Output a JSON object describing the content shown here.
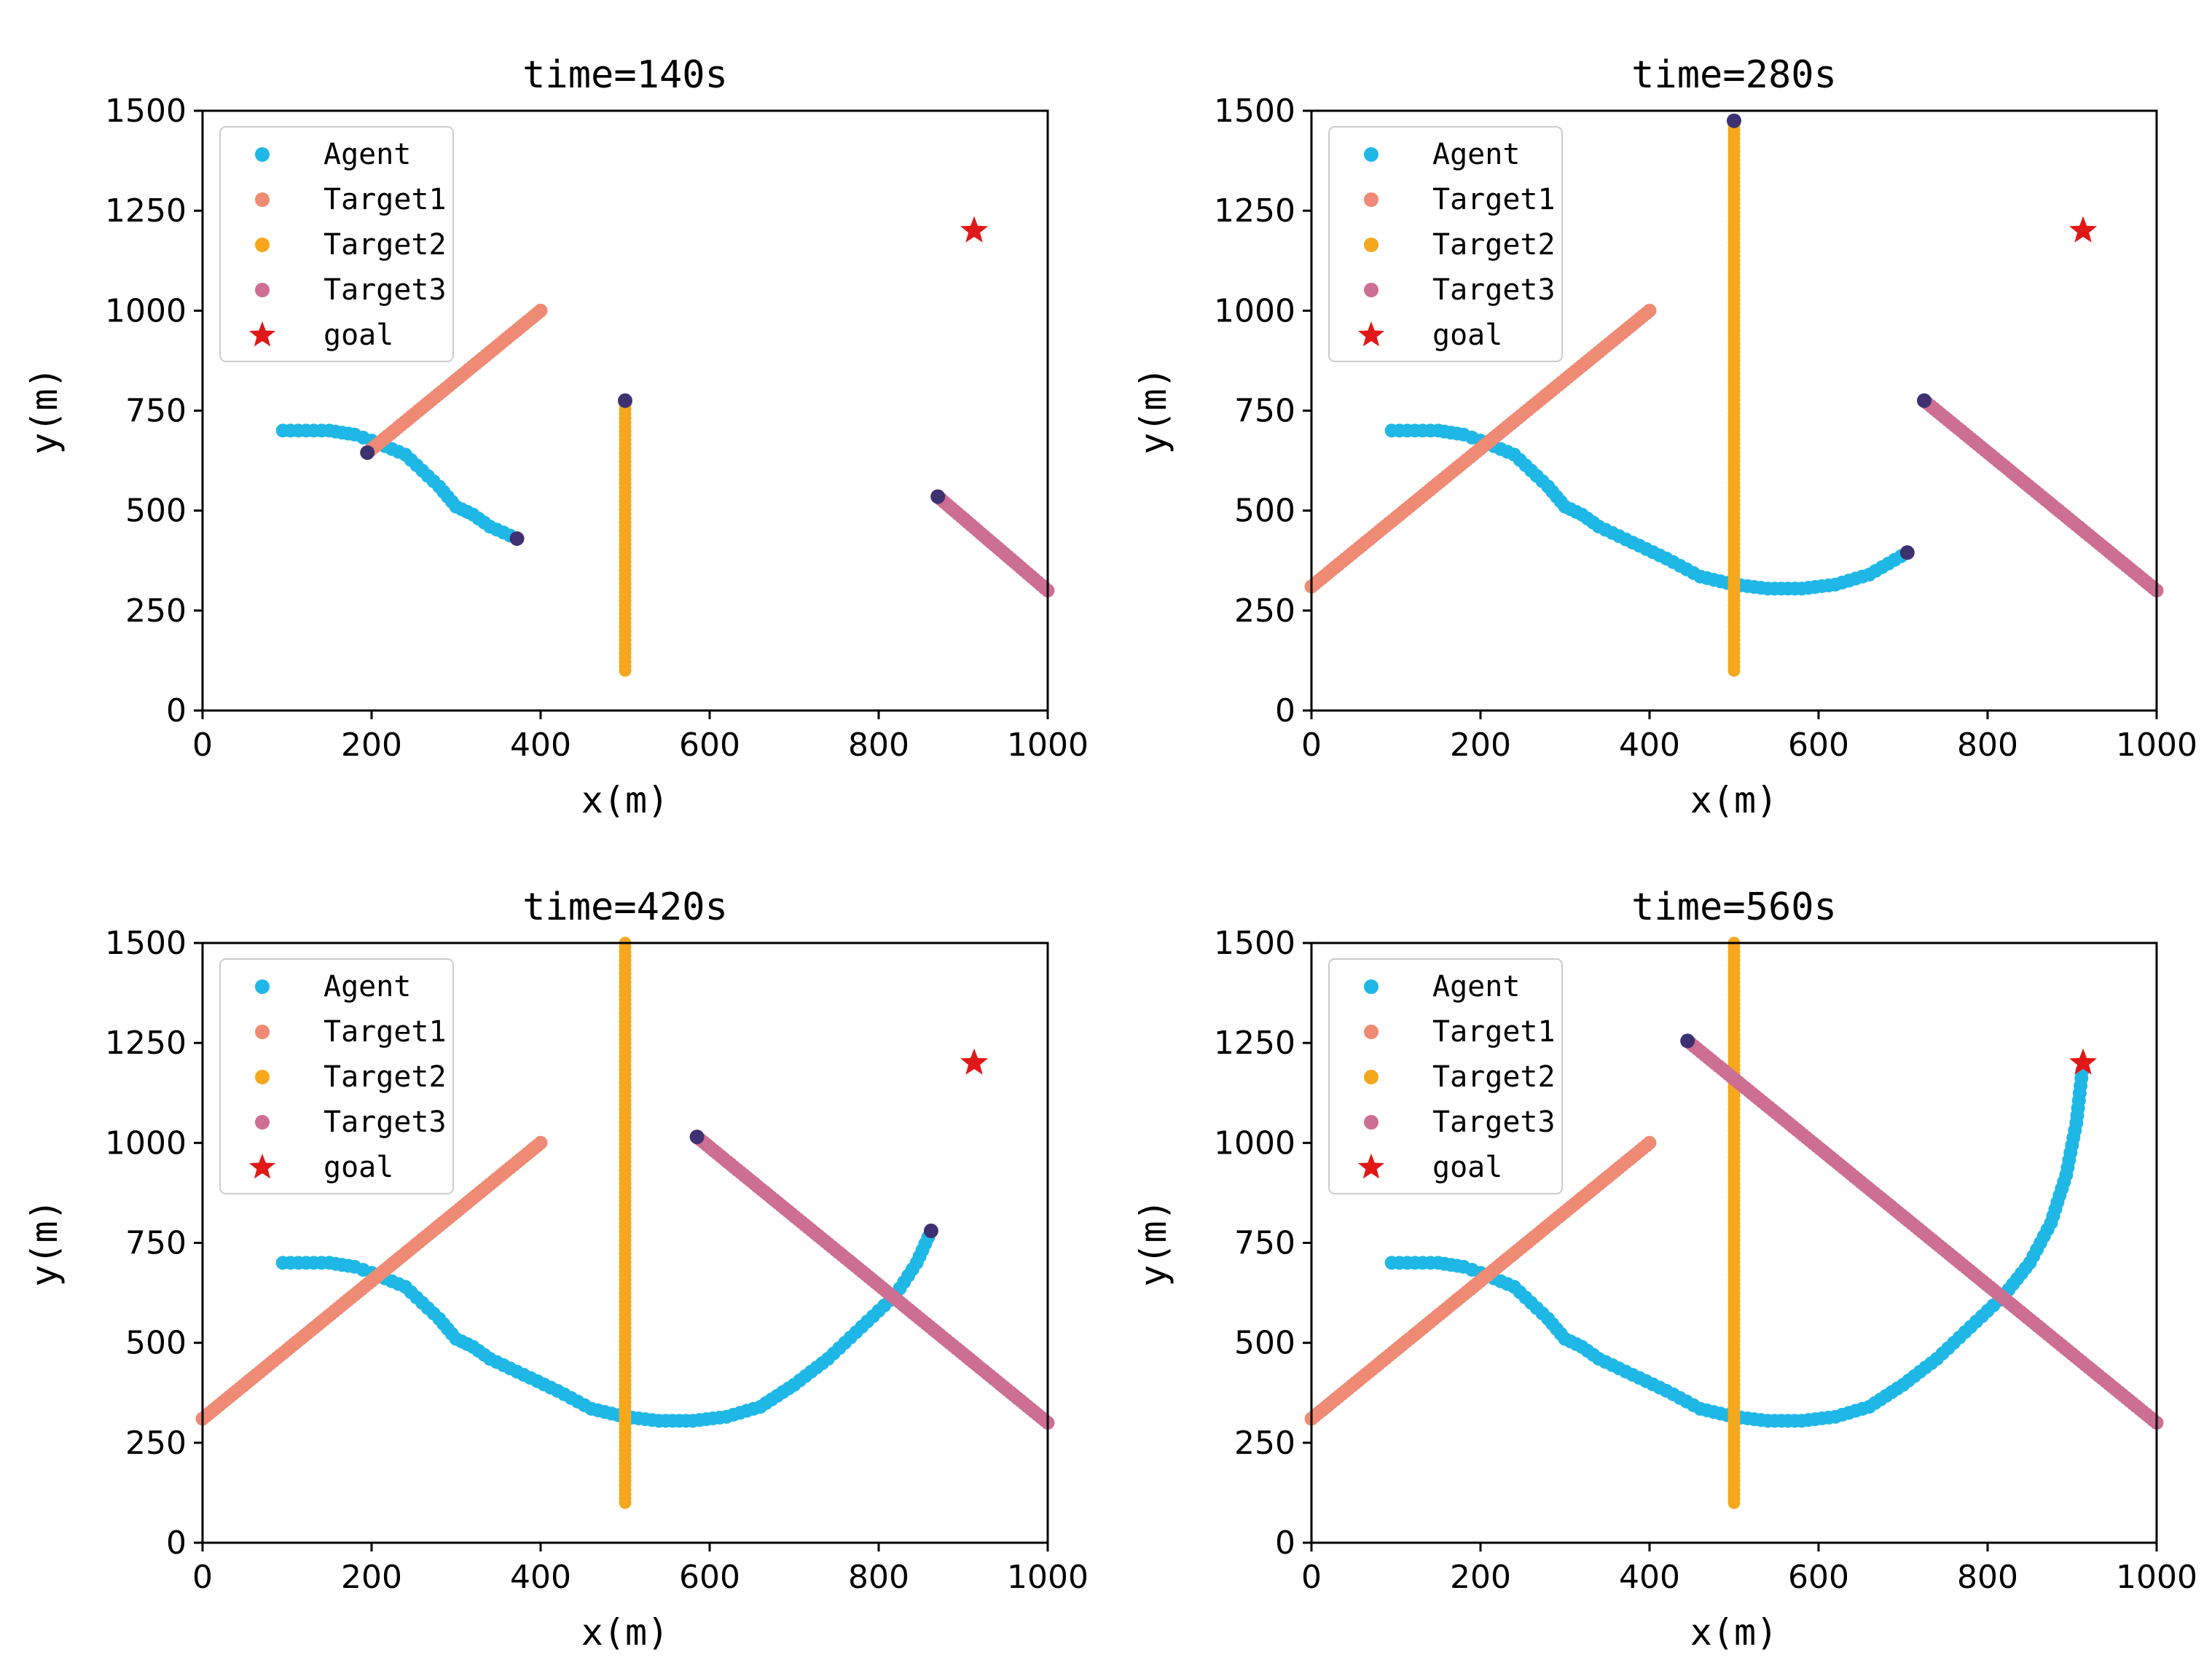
{
  "colors": {
    "agent": "#1fb8e6",
    "target1": "#ef8a74",
    "target2": "#f5a81c",
    "target3": "#cc6f92",
    "goal": "#e01818",
    "endpoint": "#3d3172"
  },
  "legend": {
    "agent": "Agent",
    "target1": "Target1",
    "target2": "Target2",
    "target3": "Target3",
    "goal": "goal"
  },
  "chart_data": [
    {
      "type": "scatter",
      "title": "time=140s",
      "xlabel": "x(m)",
      "ylabel": "y(m)",
      "xlim": [
        0,
        1000
      ],
      "ylim": [
        0,
        1500
      ],
      "xticks": [
        "0",
        "200",
        "400",
        "600",
        "800",
        "1000"
      ],
      "yticks": [
        "0",
        "250",
        "500",
        "750",
        "1000",
        "1250",
        "1500"
      ],
      "legend_position": "top-left",
      "goal": [
        913,
        1200
      ],
      "series": [
        {
          "name": "Agent",
          "x": [
            95,
            150,
            180,
            200,
            240,
            280,
            300,
            320,
            340,
            372
          ],
          "y": [
            700,
            700,
            690,
            675,
            640,
            560,
            510,
            490,
            460,
            430
          ]
        },
        {
          "name": "Target1",
          "x": [
            195,
            400
          ],
          "y": [
            645,
            1000
          ]
        },
        {
          "name": "Target2",
          "x": [
            500,
            500
          ],
          "y": [
            100,
            775
          ]
        },
        {
          "name": "Target3",
          "x": [
            870,
            1000
          ],
          "y": [
            535,
            300
          ]
        }
      ],
      "endpoints": {
        "agent": [
          372,
          430
        ],
        "target1": [
          195,
          645
        ],
        "target2": [
          500,
          775
        ],
        "target3": [
          870,
          535
        ]
      }
    },
    {
      "type": "scatter",
      "title": "time=280s",
      "xlabel": "x(m)",
      "ylabel": "y(m)",
      "xlim": [
        0,
        1000
      ],
      "ylim": [
        0,
        1500
      ],
      "xticks": [
        "0",
        "200",
        "400",
        "600",
        "800",
        "1000"
      ],
      "yticks": [
        "0",
        "250",
        "500",
        "750",
        "1000",
        "1250",
        "1500"
      ],
      "legend_position": "top-left",
      "goal": [
        913,
        1200
      ],
      "series": [
        {
          "name": "Agent",
          "x": [
            95,
            150,
            180,
            200,
            240,
            280,
            300,
            320,
            340,
            380,
            420,
            460,
            500,
            540,
            580,
            620,
            660,
            705
          ],
          "y": [
            700,
            700,
            690,
            675,
            640,
            560,
            510,
            490,
            460,
            420,
            380,
            335,
            315,
            305,
            305,
            315,
            340,
            395
          ]
        },
        {
          "name": "Target1",
          "x": [
            0,
            400
          ],
          "y": [
            310,
            1000
          ]
        },
        {
          "name": "Target2",
          "x": [
            500,
            500
          ],
          "y": [
            100,
            1475
          ]
        },
        {
          "name": "Target3",
          "x": [
            725,
            1000
          ],
          "y": [
            775,
            300
          ]
        }
      ],
      "endpoints": {
        "agent": [
          705,
          395
        ],
        "target2": [
          500,
          1475
        ],
        "target3": [
          725,
          775
        ]
      }
    },
    {
      "type": "scatter",
      "title": "time=420s",
      "xlabel": "x(m)",
      "ylabel": "y(m)",
      "xlim": [
        0,
        1000
      ],
      "ylim": [
        0,
        1500
      ],
      "xticks": [
        "0",
        "200",
        "400",
        "600",
        "800",
        "1000"
      ],
      "yticks": [
        "0",
        "250",
        "500",
        "750",
        "1000",
        "1250",
        "1500"
      ],
      "legend_position": "top-left",
      "goal": [
        913,
        1200
      ],
      "series": [
        {
          "name": "Agent",
          "x": [
            95,
            150,
            180,
            200,
            240,
            280,
            300,
            320,
            340,
            380,
            420,
            460,
            500,
            540,
            580,
            620,
            660,
            700,
            740,
            780,
            820,
            845,
            862
          ],
          "y": [
            700,
            700,
            690,
            675,
            640,
            560,
            510,
            490,
            460,
            420,
            380,
            335,
            315,
            305,
            305,
            315,
            340,
            395,
            460,
            540,
            620,
            700,
            780
          ]
        },
        {
          "name": "Target1",
          "x": [
            0,
            400
          ],
          "y": [
            310,
            1000
          ]
        },
        {
          "name": "Target2",
          "x": [
            500,
            500
          ],
          "y": [
            100,
            1500
          ]
        },
        {
          "name": "Target3",
          "x": [
            585,
            1000
          ],
          "y": [
            1015,
            300
          ]
        }
      ],
      "endpoints": {
        "agent": [
          862,
          780
        ],
        "target3": [
          585,
          1015
        ]
      }
    },
    {
      "type": "scatter",
      "title": "time=560s",
      "xlabel": "x(m)",
      "ylabel": "y(m)",
      "xlim": [
        0,
        1000
      ],
      "ylim": [
        0,
        1500
      ],
      "xticks": [
        "0",
        "200",
        "400",
        "600",
        "800",
        "1000"
      ],
      "yticks": [
        "0",
        "250",
        "500",
        "750",
        "1000",
        "1250",
        "1500"
      ],
      "legend_position": "top-left",
      "goal": [
        913,
        1200
      ],
      "series": [
        {
          "name": "Agent",
          "x": [
            95,
            150,
            180,
            200,
            240,
            280,
            300,
            320,
            340,
            380,
            420,
            460,
            500,
            540,
            580,
            620,
            660,
            700,
            740,
            780,
            820,
            850,
            875,
            893,
            905,
            912
          ],
          "y": [
            700,
            700,
            690,
            675,
            640,
            560,
            510,
            490,
            460,
            420,
            380,
            335,
            315,
            305,
            305,
            315,
            340,
            395,
            460,
            540,
            620,
            700,
            800,
            920,
            1050,
            1180
          ]
        },
        {
          "name": "Target1",
          "x": [
            0,
            400
          ],
          "y": [
            310,
            1000
          ]
        },
        {
          "name": "Target2",
          "x": [
            500,
            500
          ],
          "y": [
            100,
            1500
          ]
        },
        {
          "name": "Target3",
          "x": [
            445,
            1000
          ],
          "y": [
            1255,
            300
          ]
        }
      ],
      "endpoints": {
        "target3": [
          445,
          1255
        ]
      }
    }
  ]
}
